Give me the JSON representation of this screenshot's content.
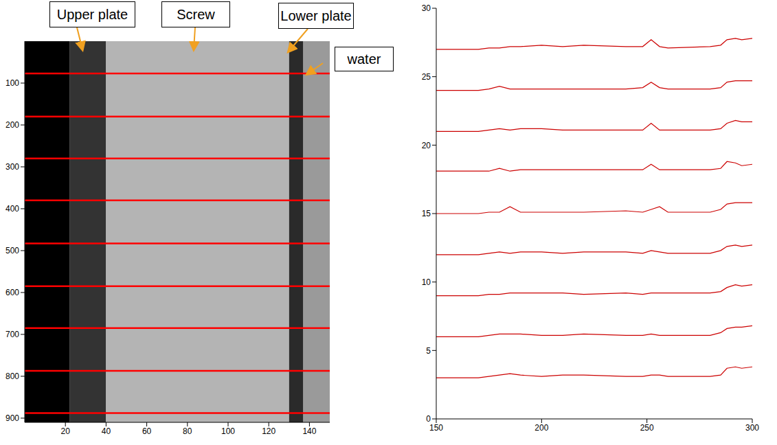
{
  "chart_data": [
    {
      "type": "image",
      "annotations": [
        "Upper plate",
        "Screw",
        "Lower plate",
        "water"
      ],
      "xlim": [
        0,
        150
      ],
      "ylim": [
        0,
        910
      ],
      "xticks": [
        20,
        40,
        60,
        80,
        100,
        120,
        140
      ],
      "yticks": [
        100,
        200,
        300,
        400,
        500,
        600,
        700,
        800,
        900
      ],
      "regions": [
        {
          "x": [
            0,
            22
          ],
          "color": "#000000"
        },
        {
          "x": [
            22,
            40
          ],
          "color": "#333333"
        },
        {
          "x": [
            40,
            130
          ],
          "color": "#b4b4b4"
        },
        {
          "x": [
            130,
            137
          ],
          "color": "#2a2a2a"
        },
        {
          "x": [
            137,
            150
          ],
          "color": "#9a9a9a"
        }
      ],
      "lines": {
        "y": [
          77,
          180,
          280,
          380,
          483,
          585,
          685,
          787,
          888
        ],
        "color": "#ff0000"
      }
    },
    {
      "type": "line",
      "xlim": [
        150,
        300
      ],
      "ylim": [
        0,
        30
      ],
      "xticks": [
        150,
        200,
        250,
        300
      ],
      "yticks": [
        0,
        5,
        10,
        15,
        20,
        25,
        30
      ],
      "color": "#cc0000",
      "x": [
        150,
        170,
        175,
        180,
        185,
        190,
        200,
        210,
        220,
        240,
        248,
        252,
        256,
        260,
        280,
        285,
        288,
        292,
        295,
        300
      ],
      "series": [
        {
          "values": [
            27,
            27,
            27.1,
            27.1,
            27.2,
            27.2,
            27.3,
            27.2,
            27.3,
            27.2,
            27.2,
            27.7,
            27.2,
            27.1,
            27.2,
            27.3,
            27.7,
            27.8,
            27.7,
            27.8
          ]
        },
        {
          "values": [
            24,
            24,
            24.1,
            24.3,
            24.1,
            24.1,
            24.1,
            24.1,
            24.1,
            24.1,
            24.2,
            24.6,
            24.2,
            24.1,
            24.1,
            24.2,
            24.6,
            24.7,
            24.7,
            24.7
          ]
        },
        {
          "values": [
            21,
            21,
            21.1,
            21.2,
            21.1,
            21.2,
            21.2,
            21.1,
            21.1,
            21.1,
            21.1,
            21.6,
            21.1,
            21.1,
            21.1,
            21.2,
            21.6,
            21.8,
            21.7,
            21.7
          ]
        },
        {
          "values": [
            18.1,
            18.1,
            18.1,
            18.3,
            18.1,
            18.2,
            18.2,
            18.2,
            18.2,
            18.2,
            18.2,
            18.6,
            18.2,
            18.2,
            18.2,
            18.3,
            18.8,
            18.7,
            18.5,
            18.6
          ]
        },
        {
          "values": [
            15,
            15,
            15.1,
            15.1,
            15.5,
            15.1,
            15.1,
            15.1,
            15.1,
            15.2,
            15.1,
            15.3,
            15.5,
            15.1,
            15.1,
            15.3,
            15.7,
            15.8,
            15.8,
            15.8
          ]
        },
        {
          "values": [
            12,
            12,
            12.1,
            12.2,
            12.1,
            12.2,
            12.2,
            12.1,
            12.2,
            12.2,
            12.1,
            12.3,
            12.2,
            12.1,
            12.1,
            12.3,
            12.6,
            12.7,
            12.6,
            12.7
          ]
        },
        {
          "values": [
            9,
            9,
            9.1,
            9.1,
            9.2,
            9.2,
            9.2,
            9.2,
            9.1,
            9.2,
            9.1,
            9.2,
            9.2,
            9.2,
            9.2,
            9.3,
            9.6,
            9.8,
            9.7,
            9.8
          ]
        },
        {
          "values": [
            6,
            6,
            6.1,
            6.2,
            6.2,
            6.2,
            6.1,
            6.1,
            6.2,
            6.1,
            6.1,
            6.2,
            6.1,
            6.1,
            6.1,
            6.3,
            6.6,
            6.7,
            6.7,
            6.8
          ]
        },
        {
          "values": [
            3,
            3,
            3.1,
            3.2,
            3.3,
            3.2,
            3.1,
            3.2,
            3.2,
            3.1,
            3.1,
            3.2,
            3.2,
            3.1,
            3.1,
            3.2,
            3.7,
            3.8,
            3.7,
            3.8
          ]
        }
      ]
    }
  ]
}
